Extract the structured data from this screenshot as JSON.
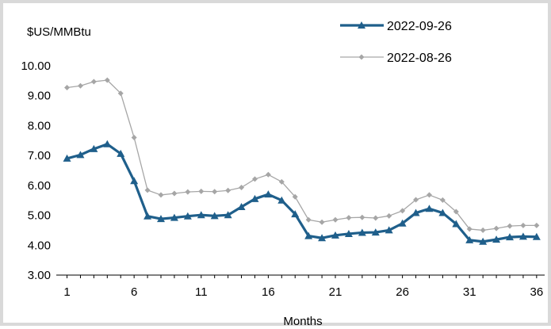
{
  "chart_data": {
    "type": "line",
    "title": "",
    "ylabel": "$US/MMBtu",
    "xlabel": "Months",
    "ylim": [
      3.0,
      10.0
    ],
    "yticks": [
      "3.00",
      "4.00",
      "5.00",
      "6.00",
      "7.00",
      "8.00",
      "9.00",
      "10.00"
    ],
    "xticks": [
      "1",
      "6",
      "11",
      "16",
      "21",
      "26",
      "31",
      "36"
    ],
    "x": [
      1,
      2,
      3,
      4,
      5,
      6,
      7,
      8,
      9,
      10,
      11,
      12,
      13,
      14,
      15,
      16,
      17,
      18,
      19,
      20,
      21,
      22,
      23,
      24,
      25,
      26,
      27,
      28,
      29,
      30,
      31,
      32,
      33,
      34,
      35,
      36
    ],
    "legend_position": "top-right",
    "grid": false,
    "series": [
      {
        "name": "2022-09-26",
        "color": "#1f5f8b",
        "marker": "triangle",
        "values": [
          6.9,
          7.02,
          7.22,
          7.38,
          7.06,
          6.15,
          4.97,
          4.88,
          4.92,
          4.97,
          5.01,
          4.98,
          5.01,
          5.28,
          5.55,
          5.7,
          5.5,
          5.04,
          4.31,
          4.24,
          4.33,
          4.38,
          4.42,
          4.43,
          4.5,
          4.73,
          5.08,
          5.22,
          5.08,
          4.71,
          4.17,
          4.12,
          4.19,
          4.27,
          4.29,
          4.28
        ]
      },
      {
        "name": "2022-08-26",
        "color": "#a6a6a6",
        "marker": "diamond",
        "values": [
          9.27,
          9.33,
          9.47,
          9.52,
          9.08,
          7.6,
          5.84,
          5.68,
          5.73,
          5.78,
          5.8,
          5.79,
          5.83,
          5.93,
          6.21,
          6.36,
          6.12,
          5.62,
          4.85,
          4.77,
          4.85,
          4.92,
          4.93,
          4.91,
          4.98,
          5.15,
          5.52,
          5.68,
          5.51,
          5.12,
          4.54,
          4.5,
          4.56,
          4.64,
          4.66,
          4.66
        ]
      }
    ]
  }
}
